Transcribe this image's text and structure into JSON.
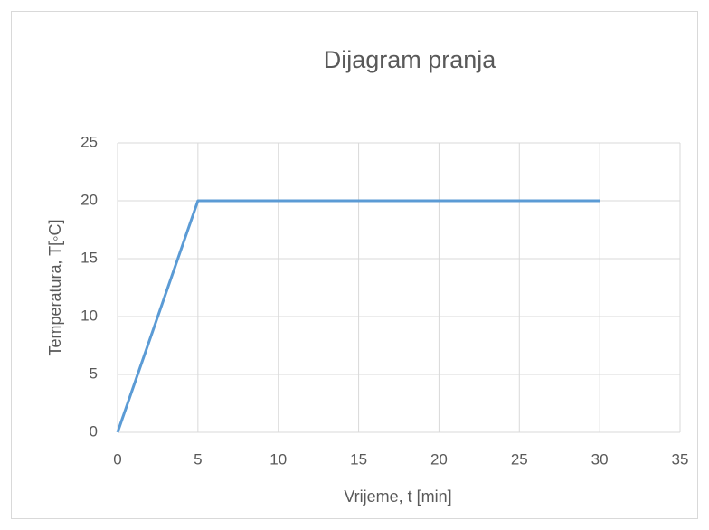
{
  "chart_data": {
    "type": "line",
    "title": "Dijagram pranja",
    "x_label": "Vrijeme, t [min]",
    "y_label": "Temperatura, T[◦C]",
    "series": [
      {
        "name": "Temperatura",
        "color": "#5b9bd5",
        "x": [
          0,
          5,
          30
        ],
        "values": [
          0,
          20,
          20
        ]
      }
    ],
    "xlim": [
      0,
      35
    ],
    "xticks": [
      0,
      5,
      10,
      15,
      20,
      25,
      30,
      35
    ],
    "ylim": [
      0,
      25
    ],
    "yticks": [
      0,
      5,
      10,
      15,
      20,
      25
    ],
    "grid": true,
    "legend": false
  }
}
